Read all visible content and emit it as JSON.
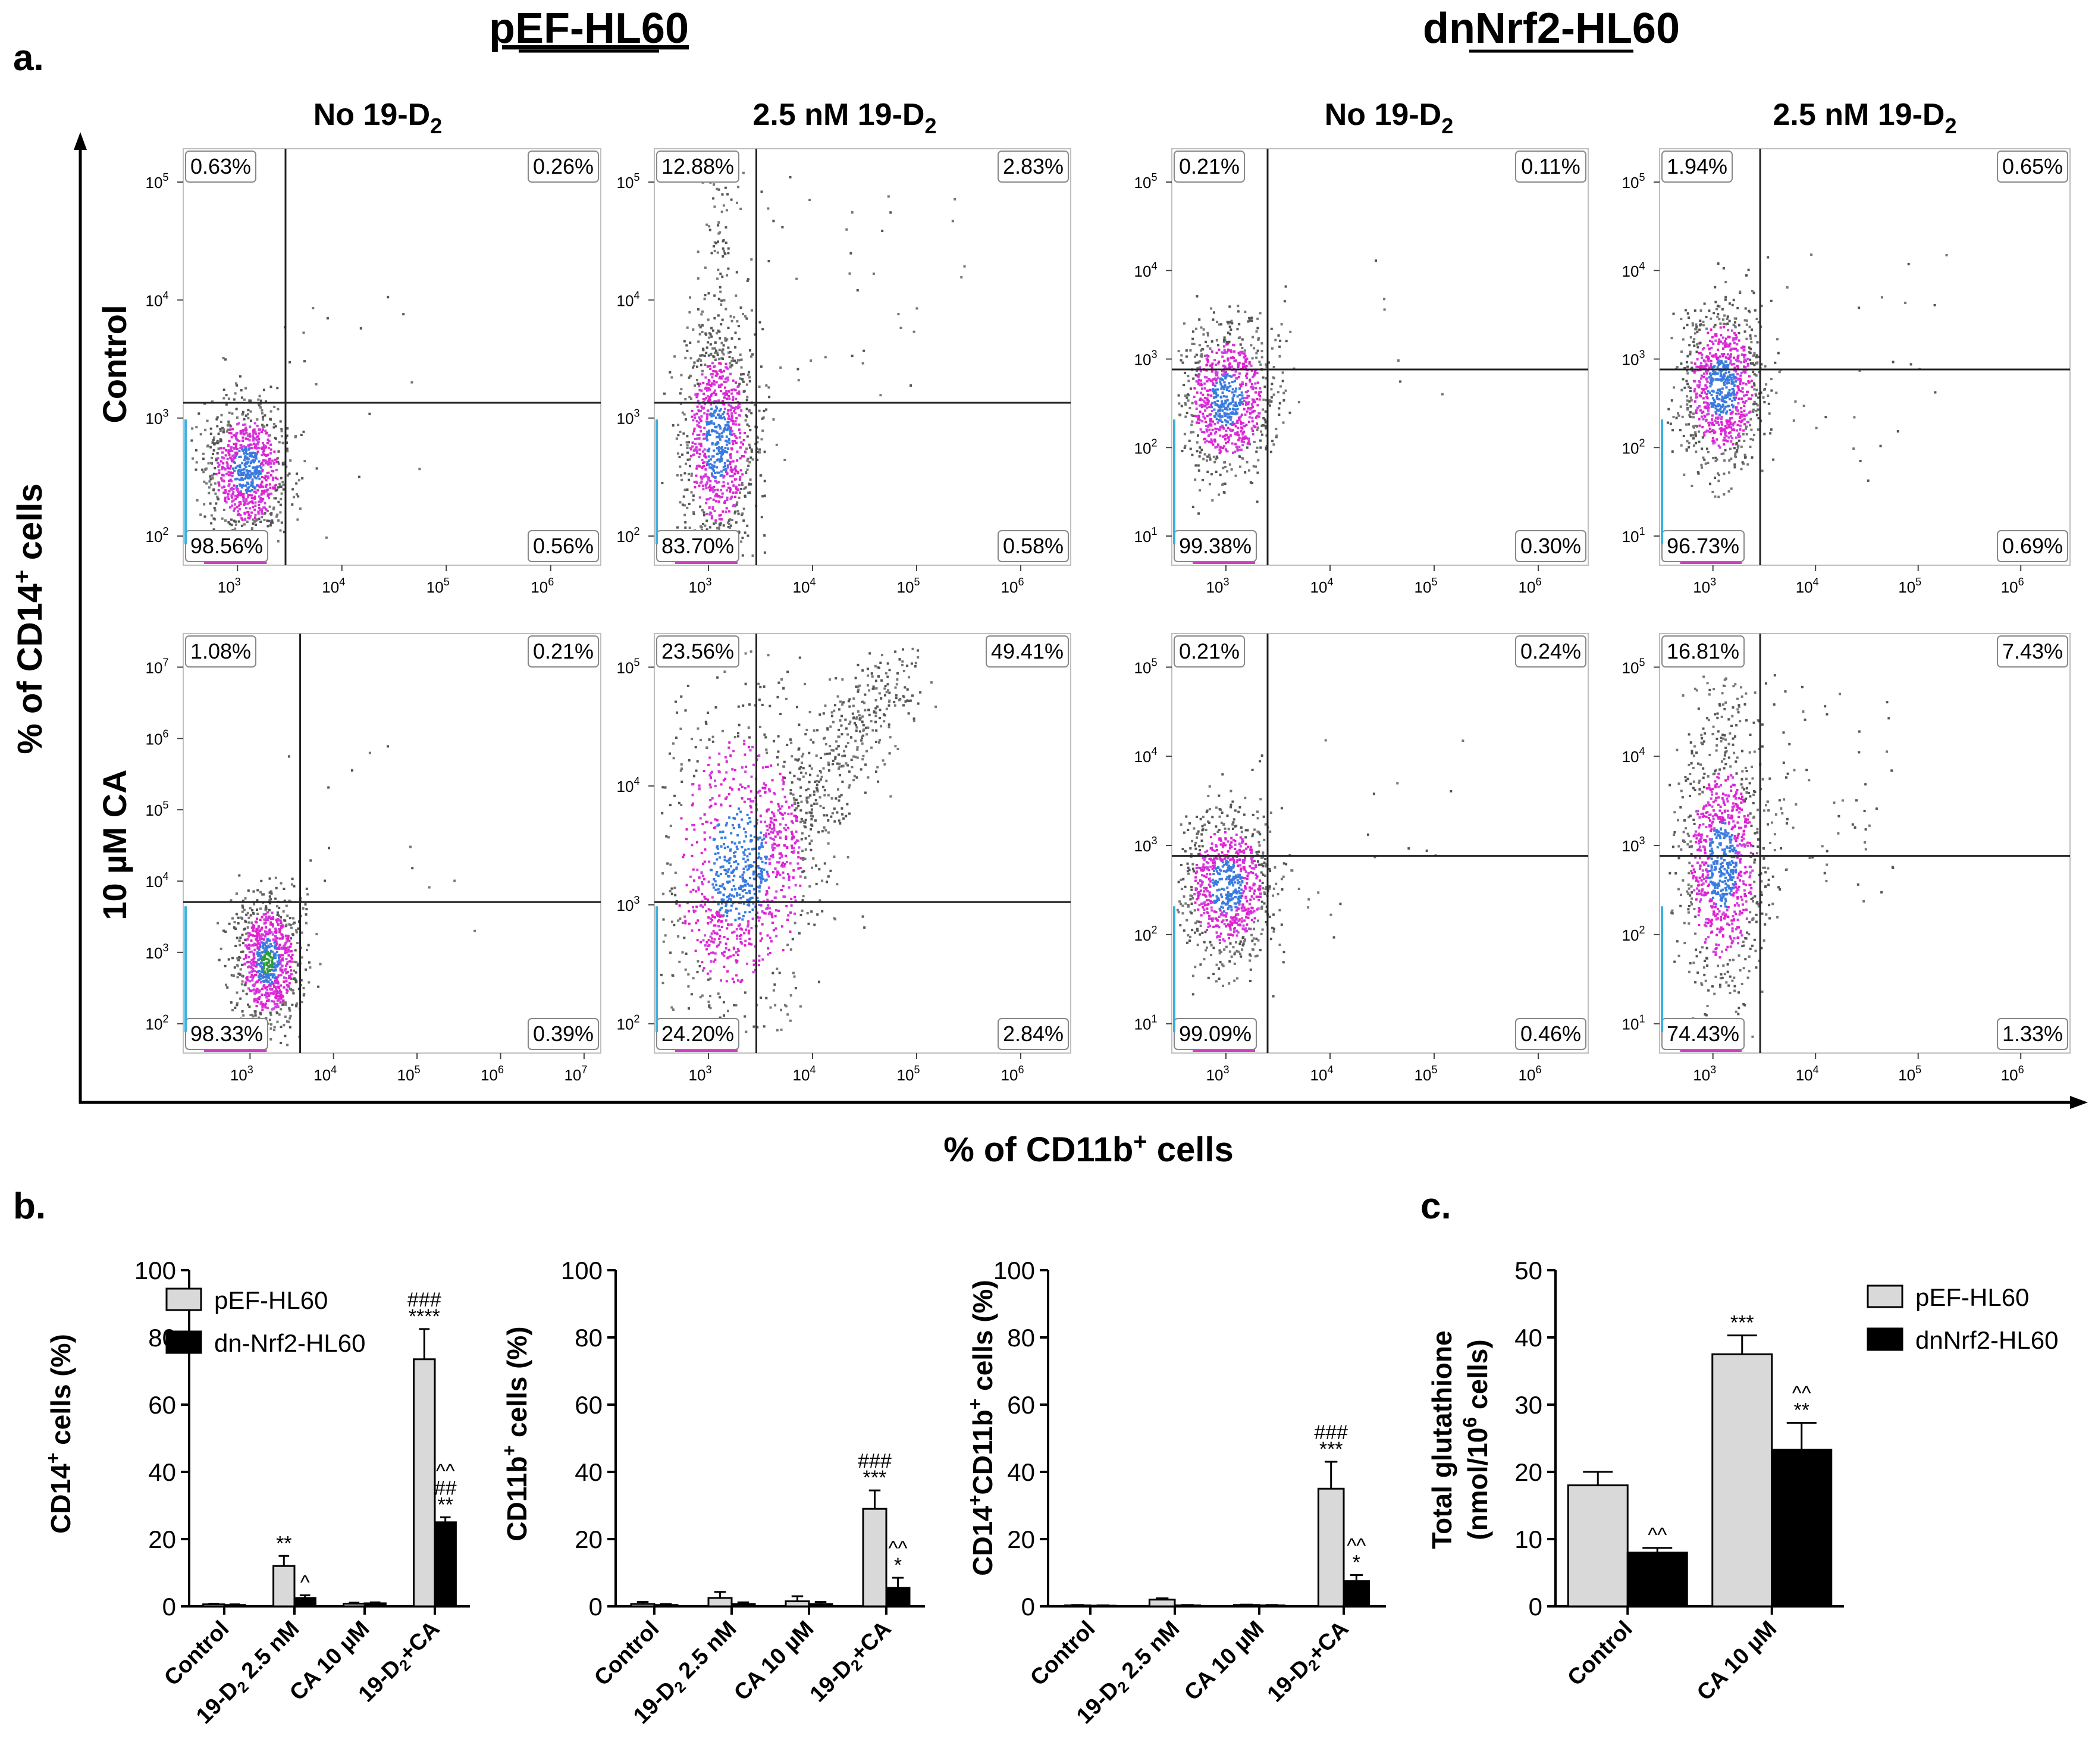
{
  "panel_a": {
    "label": "a.",
    "group_titles": [
      "pEF-HL60",
      "dnNrf2-HL60"
    ],
    "column_titles": [
      "No 19-D",
      "2.5 nM 19-D",
      "No 19-D",
      "2.5 nM 19-D"
    ],
    "column_subscript": "2",
    "row_titles": [
      "Control",
      "10 µM  CA"
    ],
    "y_axis_label": "% of CD14",
    "x_axis_label": "% of CD11b",
    "superscript_plus": "+",
    "axis_label_suffix": " cells"
  },
  "panel_b": {
    "label": "b."
  },
  "panel_c": {
    "label": "c."
  },
  "chart_data": [
    {
      "type": "scatter",
      "panel": "a",
      "title": "Flow cytometry dot plots (quadrant percentages)",
      "xlabel": "% of CD11b+ cells",
      "ylabel": "% of CD14+ cells",
      "plots": [
        {
          "group": "pEF-HL60",
          "column": "No 19-D2",
          "row": "Control",
          "quadrants": {
            "ul": "0.63%",
            "ur": "0.26%",
            "ll": "98.56%",
            "lr": "0.56%"
          },
          "xticks": [
            "10",
            "10",
            "10",
            "10"
          ],
          "xexp": [
            "3",
            "4",
            "5",
            "6"
          ],
          "yticks": [
            "10",
            "10",
            "10",
            "10"
          ],
          "yexp": [
            "2",
            "3",
            "4",
            "5"
          ]
        },
        {
          "group": "pEF-HL60",
          "column": "2.5 nM 19-D2",
          "row": "Control",
          "quadrants": {
            "ul": "12.88%",
            "ur": "2.83%",
            "ll": "83.70%",
            "lr": "0.58%"
          },
          "xticks": [
            "10",
            "10",
            "10",
            "10"
          ],
          "xexp": [
            "3",
            "4",
            "5",
            "6"
          ],
          "yticks": [
            "10",
            "10",
            "10",
            "10"
          ],
          "yexp": [
            "2",
            "3",
            "4",
            "5"
          ]
        },
        {
          "group": "dnNrf2-HL60",
          "column": "No 19-D2",
          "row": "Control",
          "quadrants": {
            "ul": "0.21%",
            "ur": "0.11%",
            "ll": "99.38%",
            "lr": "0.30%"
          },
          "xticks": [
            "10",
            "10",
            "10",
            "10"
          ],
          "xexp": [
            "3",
            "4",
            "5",
            "6"
          ],
          "yticks": [
            "10",
            "10",
            "10",
            "10",
            "10"
          ],
          "yexp": [
            "1",
            "2",
            "3",
            "4",
            "5"
          ]
        },
        {
          "group": "dnNrf2-HL60",
          "column": "2.5 nM 19-D2",
          "row": "Control",
          "quadrants": {
            "ul": "1.94%",
            "ur": "0.65%",
            "ll": "96.73%",
            "lr": "0.69%"
          },
          "xticks": [
            "10",
            "10",
            "10",
            "10"
          ],
          "xexp": [
            "3",
            "4",
            "5",
            "6"
          ],
          "yticks": [
            "10",
            "10",
            "10",
            "10",
            "10"
          ],
          "yexp": [
            "1",
            "2",
            "3",
            "4",
            "5"
          ]
        },
        {
          "group": "pEF-HL60",
          "column": "No 19-D2",
          "row": "10 µM CA",
          "quadrants": {
            "ul": "1.08%",
            "ur": "0.21%",
            "ll": "98.33%",
            "lr": "0.39%"
          },
          "xticks": [
            "10",
            "10",
            "10",
            "10",
            "10"
          ],
          "xexp": [
            "3",
            "4",
            "5",
            "6",
            "7"
          ],
          "yticks": [
            "10",
            "10",
            "10",
            "10",
            "10",
            "10"
          ],
          "yexp": [
            "2",
            "3",
            "4",
            "5",
            "6",
            "7"
          ]
        },
        {
          "group": "pEF-HL60",
          "column": "2.5 nM 19-D2",
          "row": "10 µM CA",
          "quadrants": {
            "ul": "23.56%",
            "ur": "49.41%",
            "ll": "24.20%",
            "lr": "2.84%"
          },
          "xticks": [
            "10",
            "10",
            "10",
            "10"
          ],
          "xexp": [
            "3",
            "4",
            "5",
            "6"
          ],
          "yticks": [
            "10",
            "10",
            "10",
            "10"
          ],
          "yexp": [
            "2",
            "3",
            "4",
            "5"
          ]
        },
        {
          "group": "dnNrf2-HL60",
          "column": "No 19-D2",
          "row": "10 µM CA",
          "quadrants": {
            "ul": "0.21%",
            "ur": "0.24%",
            "ll": "99.09%",
            "lr": "0.46%"
          },
          "xticks": [
            "10",
            "10",
            "10",
            "10"
          ],
          "xexp": [
            "3",
            "4",
            "5",
            "6"
          ],
          "yticks": [
            "10",
            "10",
            "10",
            "10",
            "10"
          ],
          "yexp": [
            "1",
            "2",
            "3",
            "4",
            "5"
          ]
        },
        {
          "group": "dnNrf2-HL60",
          "column": "2.5 nM 19-D2",
          "row": "10 µM CA",
          "quadrants": {
            "ul": "16.81%",
            "ur": "7.43%",
            "ll": "74.43%",
            "lr": "1.33%"
          },
          "xticks": [
            "10",
            "10",
            "10",
            "10"
          ],
          "xexp": [
            "3",
            "4",
            "5",
            "6"
          ],
          "yticks": [
            "10",
            "10",
            "10",
            "10",
            "10"
          ],
          "yexp": [
            "1",
            "2",
            "3",
            "4",
            "5"
          ]
        }
      ]
    },
    {
      "type": "bar",
      "panel": "b1",
      "ylabel": "CD14+ cells (%)",
      "ylim": [
        0,
        100
      ],
      "yticks": [
        0,
        20,
        40,
        60,
        80,
        100
      ],
      "categories": [
        "Control",
        "19-D2 2.5 nM",
        "CA 10 µM",
        "19-D2+CA"
      ],
      "series": [
        {
          "name": "pEF-HL60",
          "color": "#d9d9d9",
          "values": [
            0.6,
            12,
            0.8,
            73.5
          ],
          "errors": [
            0.2,
            3,
            0.3,
            9
          ]
        },
        {
          "name": "dn-Nrf2-HL60",
          "color": "#000000",
          "values": [
            0.4,
            2.5,
            0.9,
            25
          ],
          "errors": [
            0.2,
            0.8,
            0.3,
            1.5
          ]
        }
      ],
      "annotations": [
        [
          "",
          "**",
          "",
          "###\n****"
        ],
        [
          "",
          "^",
          "",
          "^^\n##\n**"
        ]
      ],
      "legend_position": "top-left"
    },
    {
      "type": "bar",
      "panel": "b2",
      "ylabel": "CD11b+ cells (%)",
      "ylim": [
        0,
        100
      ],
      "yticks": [
        0,
        20,
        40,
        60,
        80,
        100
      ],
      "categories": [
        "Control",
        "19-D2 2.5 nM",
        "CA 10 µM",
        "19-D2+CA"
      ],
      "series": [
        {
          "name": "pEF-HL60",
          "color": "#d9d9d9",
          "values": [
            0.7,
            2.5,
            1.5,
            29
          ],
          "errors": [
            0.6,
            1.8,
            1.5,
            5.5
          ]
        },
        {
          "name": "dn-Nrf2-HL60",
          "color": "#000000",
          "values": [
            0.4,
            0.7,
            0.7,
            5.5
          ],
          "errors": [
            0.3,
            0.5,
            0.6,
            3
          ]
        }
      ],
      "annotations": [
        [
          "",
          "",
          "",
          "###\n***"
        ],
        [
          "",
          "",
          "",
          "^^\n*"
        ]
      ]
    },
    {
      "type": "bar",
      "panel": "b3",
      "ylabel": "CD14+CD11b+ cells (%)",
      "ylim": [
        0,
        100
      ],
      "yticks": [
        0,
        20,
        40,
        60,
        80,
        100
      ],
      "categories": [
        "Control",
        "19-D2 2.5 nM",
        "CA 10 µM",
        "19-D2+CA"
      ],
      "series": [
        {
          "name": "pEF-HL60",
          "color": "#d9d9d9",
          "values": [
            0.3,
            2,
            0.4,
            35
          ],
          "errors": [
            0.1,
            0.4,
            0.1,
            8
          ]
        },
        {
          "name": "dn-Nrf2-HL60",
          "color": "#000000",
          "values": [
            0.2,
            0.3,
            0.3,
            7.5
          ],
          "errors": [
            0.1,
            0.1,
            0.1,
            1.8
          ]
        }
      ],
      "annotations": [
        [
          "",
          "",
          "",
          "###\n***"
        ],
        [
          "",
          "",
          "",
          "^^\n*"
        ]
      ]
    },
    {
      "type": "bar",
      "panel": "c",
      "ylabel": "Total glutathione (nmol/10^6 cells)",
      "ylabel_line1": "Total glutathione",
      "ylabel_line2_pre": "(nmol/10",
      "ylabel_line2_sup": "6",
      "ylabel_line2_post": " cells)",
      "ylim": [
        0,
        50
      ],
      "yticks": [
        0,
        10,
        20,
        30,
        40,
        50
      ],
      "categories": [
        "Control",
        "CA 10 µM"
      ],
      "series": [
        {
          "name": "pEF-HL60",
          "color": "#d9d9d9",
          "values": [
            18,
            37.5
          ],
          "errors": [
            2,
            2.8
          ]
        },
        {
          "name": "dnNrf2-HL60",
          "color": "#000000",
          "values": [
            8,
            23.3
          ],
          "errors": [
            0.7,
            4
          ]
        }
      ],
      "annotations": [
        [
          "",
          "***"
        ],
        [
          "^^",
          "^^\n**"
        ]
      ],
      "legend_position": "top-right"
    }
  ]
}
